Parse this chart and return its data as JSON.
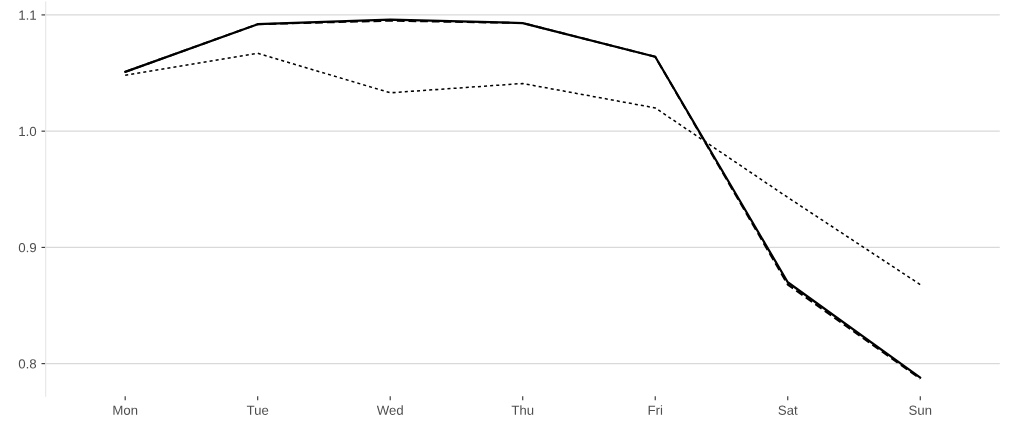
{
  "chart_data": {
    "type": "line",
    "categories": [
      "Mon",
      "Tue",
      "Wed",
      "Thu",
      "Fri",
      "Sat",
      "Sun"
    ],
    "series": [
      {
        "color": "#000000",
        "line_style": "solid",
        "values": [
          1.051,
          1.092,
          1.096,
          1.093,
          1.064,
          0.87,
          0.788
        ]
      },
      {
        "color": "#000000",
        "line_style": "dashed",
        "values": [
          1.051,
          1.092,
          1.095,
          1.093,
          1.064,
          0.868,
          0.787
        ]
      },
      {
        "color": "#000000",
        "line_style": "dotted",
        "values": [
          1.048,
          1.067,
          1.033,
          1.041,
          1.02,
          0.943,
          0.868
        ]
      }
    ],
    "ylim": [
      0.772,
      1.111
    ],
    "yticks": [
      0.8,
      0.9,
      {
        "value": 1,
        "label": "1.0"
      },
      1.1
    ],
    "grid": "y",
    "marker": "none"
  }
}
